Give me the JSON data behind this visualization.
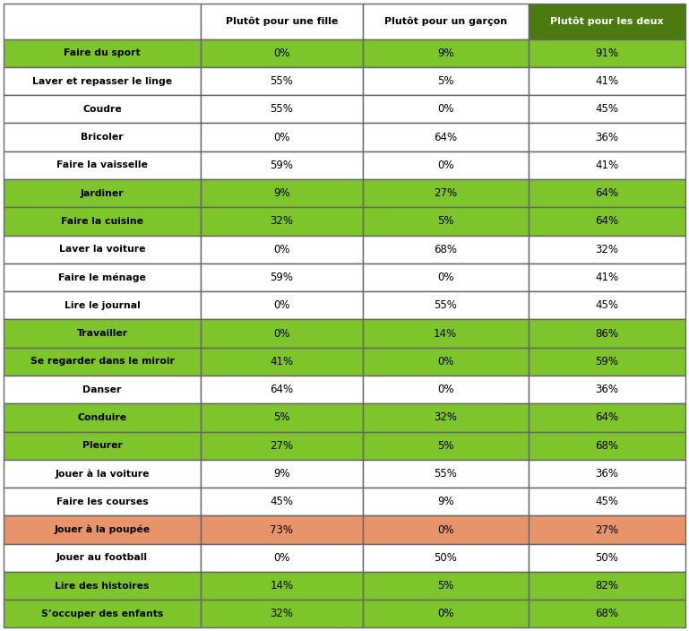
{
  "rows": [
    {
      "label": "Faire du sport",
      "fille": "0%",
      "garcon": "9%",
      "deux": "91%",
      "bg": "green"
    },
    {
      "label": "Laver et repasser le linge",
      "fille": "55%",
      "garcon": "5%",
      "deux": "41%",
      "bg": "white"
    },
    {
      "label": "Coudre",
      "fille": "55%",
      "garcon": "0%",
      "deux": "45%",
      "bg": "white"
    },
    {
      "label": "Bricoler",
      "fille": "0%",
      "garcon": "64%",
      "deux": "36%",
      "bg": "white"
    },
    {
      "label": "Faire la vaisselle",
      "fille": "59%",
      "garcon": "0%",
      "deux": "41%",
      "bg": "white"
    },
    {
      "label": "Jardiner",
      "fille": "9%",
      "garcon": "27%",
      "deux": "64%",
      "bg": "green"
    },
    {
      "label": "Faire la cuisine",
      "fille": "32%",
      "garcon": "5%",
      "deux": "64%",
      "bg": "green"
    },
    {
      "label": "Laver la voiture",
      "fille": "0%",
      "garcon": "68%",
      "deux": "32%",
      "bg": "white"
    },
    {
      "label": "Faire le ménage",
      "fille": "59%",
      "garcon": "0%",
      "deux": "41%",
      "bg": "white"
    },
    {
      "label": "Lire le journal",
      "fille": "0%",
      "garcon": "55%",
      "deux": "45%",
      "bg": "white"
    },
    {
      "label": "Travailler",
      "fille": "0%",
      "garcon": "14%",
      "deux": "86%",
      "bg": "green"
    },
    {
      "label": "Se regarder dans le miroir",
      "fille": "41%",
      "garcon": "0%",
      "deux": "59%",
      "bg": "green"
    },
    {
      "label": "Danser",
      "fille": "64%",
      "garcon": "0%",
      "deux": "36%",
      "bg": "white"
    },
    {
      "label": "Conduire",
      "fille": "5%",
      "garcon": "32%",
      "deux": "64%",
      "bg": "green"
    },
    {
      "label": "Pleurer",
      "fille": "27%",
      "garcon": "5%",
      "deux": "68%",
      "bg": "green"
    },
    {
      "label": "Jouer à la voiture",
      "fille": "9%",
      "garcon": "55%",
      "deux": "36%",
      "bg": "white"
    },
    {
      "label": "Faire les courses",
      "fille": "45%",
      "garcon": "9%",
      "deux": "45%",
      "bg": "white"
    },
    {
      "label": "Jouer à la poupée",
      "fille": "73%",
      "garcon": "0%",
      "deux": "27%",
      "bg": "orange"
    },
    {
      "label": "Jouer au football",
      "fille": "0%",
      "garcon": "50%",
      "deux": "50%",
      "bg": "white"
    },
    {
      "label": "Lire des histoires",
      "fille": "14%",
      "garcon": "5%",
      "deux": "82%",
      "bg": "green"
    },
    {
      "label": "S’occuper des enfants",
      "fille": "32%",
      "garcon": "0%",
      "deux": "68%",
      "bg": "green"
    }
  ],
  "col_headers": [
    "Plutôt pour une fille",
    "Plutôt pour un garçon",
    "Plutôt pour les deux"
  ],
  "green_color": "#7DC52A",
  "orange_color": "#E8946A",
  "white_color": "#FFFFFF",
  "border_color": "#666666",
  "col3_header_bg": "#4A7A10",
  "figsize": [
    7.69,
    7.04
  ],
  "dpi": 100
}
